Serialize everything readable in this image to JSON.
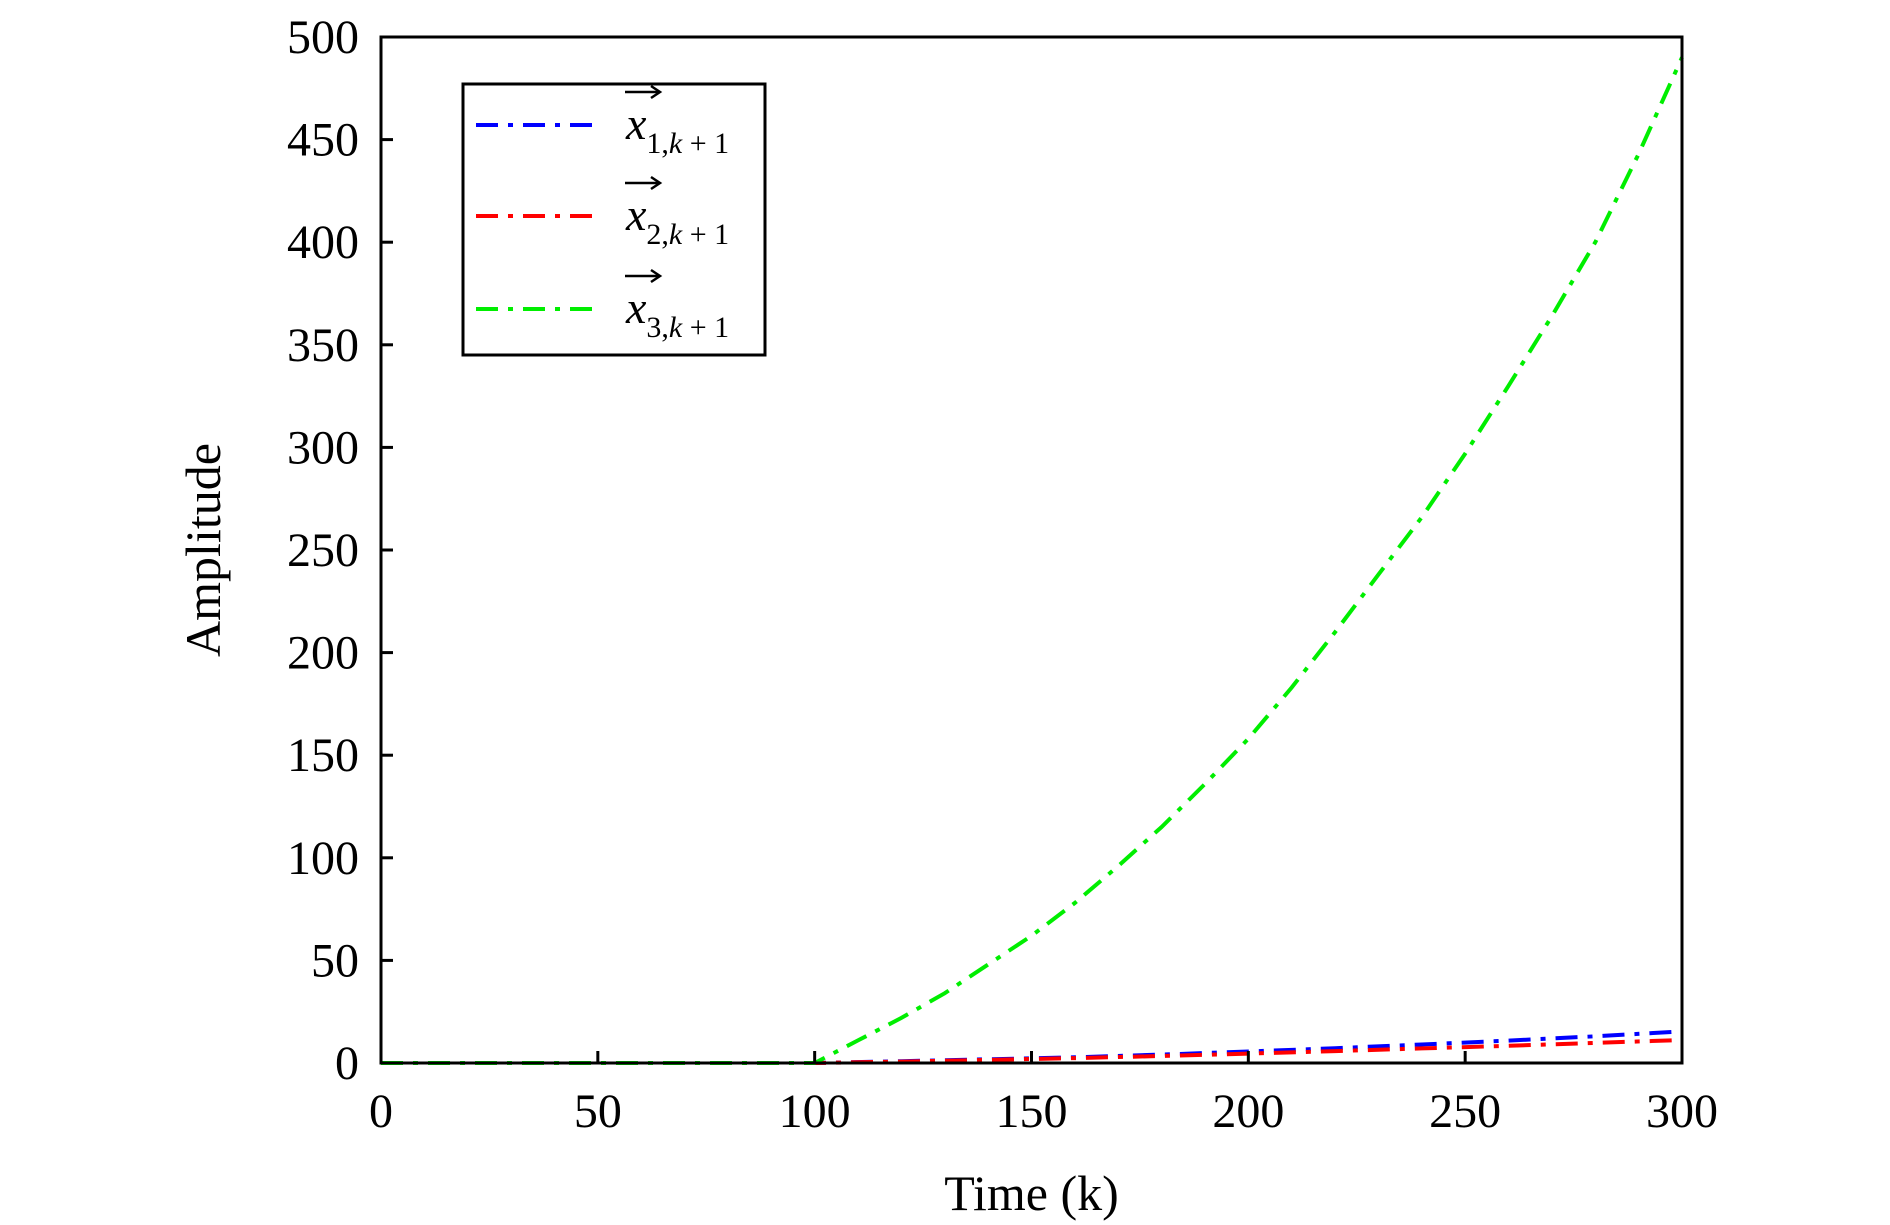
{
  "chart_data": {
    "type": "line",
    "xlabel": "Time (k)",
    "ylabel": "Amplitude",
    "xlim": [
      0,
      300
    ],
    "ylim": [
      0,
      500
    ],
    "xticks": [
      0,
      50,
      100,
      150,
      200,
      250,
      300
    ],
    "yticks": [
      0,
      50,
      100,
      150,
      200,
      250,
      300,
      350,
      400,
      450,
      500
    ],
    "xtick_labels": [
      "0",
      "50",
      "100",
      "150",
      "200",
      "250",
      "300"
    ],
    "ytick_labels": [
      "0",
      "50",
      "100",
      "150",
      "200",
      "250",
      "300",
      "350",
      "400",
      "450",
      "500"
    ],
    "grid": false,
    "legend_position": "top-left",
    "series": [
      {
        "name": "x1,k+1",
        "legend": {
          "var": "x",
          "sub_index": "1,",
          "sub_k": "k",
          "sub_rest": " + 1"
        },
        "color": "#0000ff",
        "dash": "dash-dot",
        "x": [
          0,
          100,
          120,
          140,
          160,
          180,
          200,
          220,
          240,
          260,
          280,
          300
        ],
        "y": [
          0,
          0,
          0.9,
          1.8,
          2.8,
          4.1,
          5.6,
          7.2,
          9.0,
          10.9,
          13.0,
          15.4
        ]
      },
      {
        "name": "x2,k+1",
        "legend": {
          "var": "x",
          "sub_index": "2,",
          "sub_k": "k",
          "sub_rest": " + 1"
        },
        "color": "#ff0000",
        "dash": "dash-dot",
        "x": [
          0,
          100,
          120,
          140,
          160,
          180,
          200,
          220,
          240,
          260,
          280,
          300
        ],
        "y": [
          0,
          0,
          0.7,
          1.5,
          2.4,
          3.4,
          4.6,
          5.8,
          7.1,
          8.4,
          9.8,
          11.2
        ]
      },
      {
        "name": "x3,k+1",
        "legend": {
          "var": "x",
          "sub_index": "3,",
          "sub_k": "k",
          "sub_rest": " + 1"
        },
        "color": "#00ee00",
        "dash": "dash-dot",
        "x": [
          0,
          100,
          110,
          120,
          130,
          140,
          150,
          160,
          170,
          180,
          190,
          200,
          210,
          220,
          230,
          240,
          250,
          260,
          270,
          280,
          290,
          300
        ],
        "y": [
          0,
          0,
          11,
          22,
          34,
          48,
          62,
          78,
          96,
          115,
          136,
          158,
          183,
          210,
          238,
          266,
          297,
          330,
          364,
          400,
          443,
          490
        ]
      }
    ]
  }
}
